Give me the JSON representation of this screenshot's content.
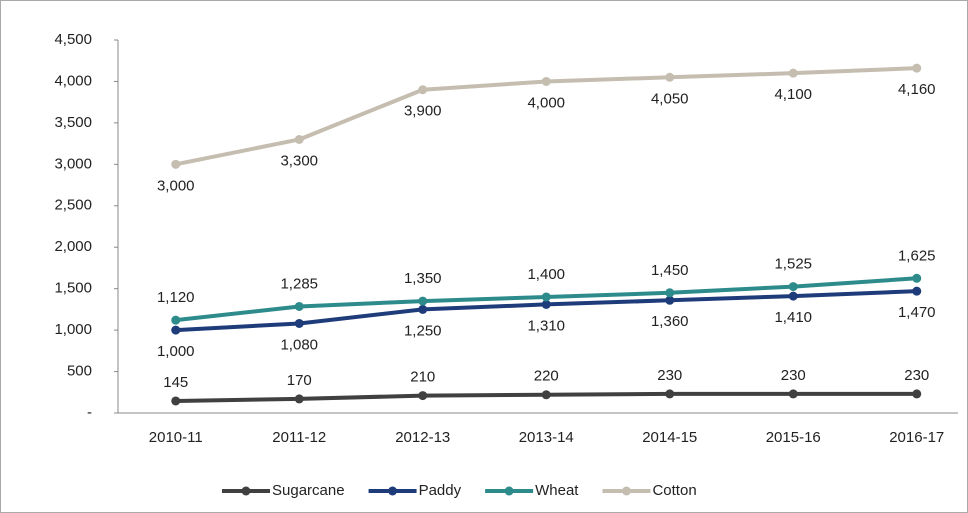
{
  "chart_data": {
    "type": "line",
    "categories": [
      "2010-11",
      "2011-12",
      "2012-13",
      "2013-14",
      "2014-15",
      "2015-16",
      "2016-17"
    ],
    "series": [
      {
        "name": "Sugarcane",
        "color": "#404040",
        "values": [
          145,
          170,
          210,
          220,
          230,
          230,
          230
        ]
      },
      {
        "name": "Paddy",
        "color": "#1f3c7a",
        "values": [
          1000,
          1080,
          1250,
          1310,
          1360,
          1410,
          1470
        ],
        "value_labels": [
          "1,000",
          "1,080",
          "1,250",
          "1,310",
          "1,360",
          "1,410",
          "1,470"
        ]
      },
      {
        "name": "Wheat",
        "color": "#2e8b8b",
        "values": [
          1120,
          1285,
          1350,
          1400,
          1450,
          1525,
          1625
        ],
        "value_labels": [
          "1,120",
          "1,285",
          "1,350",
          "1,400",
          "1,450",
          "1,525",
          "1,625"
        ]
      },
      {
        "name": "Cotton",
        "color": "#c4bdb0",
        "values": [
          3000,
          3300,
          3900,
          4000,
          4050,
          4100,
          4160
        ],
        "value_labels": [
          "3,000",
          "3,300",
          "3,900",
          "4,000",
          "4,050",
          "4,100",
          "4,160"
        ]
      }
    ],
    "ylim": [
      0,
      4500
    ],
    "yticks": [
      {
        "value": 0,
        "label": "-"
      },
      500,
      {
        "value": 1000,
        "label": "1,000"
      },
      {
        "value": 1500,
        "label": "1,500"
      },
      {
        "value": 2000,
        "label": "2,000"
      },
      {
        "value": 2500,
        "label": "2,500"
      },
      {
        "value": 3000,
        "label": "3,000"
      },
      {
        "value": 3500,
        "label": "3,500"
      },
      {
        "value": 4000,
        "label": "4,000"
      },
      {
        "value": 4500,
        "label": "4,500"
      }
    ],
    "legend": "bottom"
  }
}
